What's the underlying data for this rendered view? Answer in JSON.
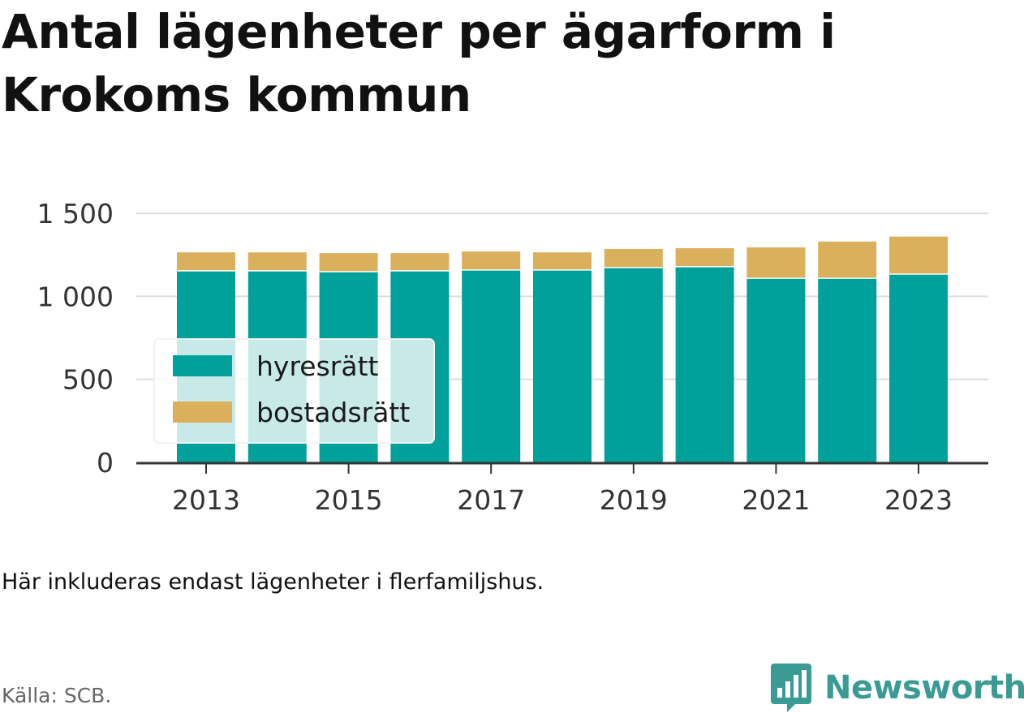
{
  "header": {
    "title": "Antal lägenheter per ägarform i Krokoms kommun"
  },
  "footer": {
    "note": "Här inkluderas endast lägenheter i flerfamiljshus.",
    "source": "Källa: SCB.",
    "brand": "Newsworthy"
  },
  "colors": {
    "hyresratt": "#00a19a",
    "bostadsratt": "#dbb05c",
    "brand": "#3a9b94"
  },
  "icons": {
    "brand_logo": "newsworthy-logo-icon"
  },
  "chart_data": {
    "type": "bar",
    "stacked": true,
    "title": "Antal lägenheter per ägarform i Krokoms kommun",
    "categories": [
      "2013",
      "2014",
      "2015",
      "2016",
      "2017",
      "2018",
      "2019",
      "2020",
      "2021",
      "2022",
      "2023"
    ],
    "x_tick_labels": [
      "2013",
      "2015",
      "2017",
      "2019",
      "2021",
      "2023"
    ],
    "y_tick_labels": [
      "0",
      "500",
      "1 000",
      "1 500"
    ],
    "y_ticks": [
      0,
      500,
      1000,
      1500
    ],
    "ylim": [
      0,
      1500
    ],
    "grid": true,
    "legend": "left, inside plot",
    "series": [
      {
        "name": "hyresrätt",
        "color": "#00a19a",
        "values": [
          1150,
          1150,
          1145,
          1150,
          1155,
          1155,
          1170,
          1175,
          1105,
          1105,
          1130
        ]
      },
      {
        "name": "bostadsrätt",
        "color": "#dbb05c",
        "values": [
          115,
          115,
          115,
          110,
          115,
          110,
          115,
          115,
          190,
          225,
          230
        ]
      }
    ]
  }
}
